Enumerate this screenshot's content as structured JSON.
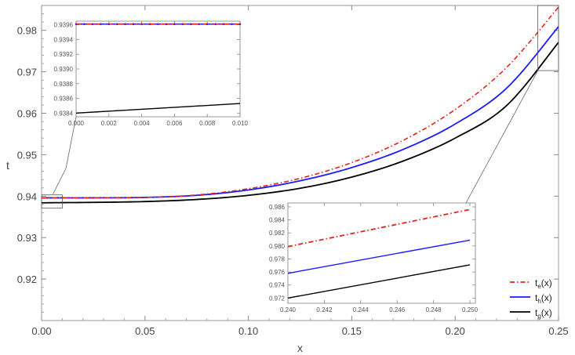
{
  "chart_data": [
    {
      "type": "line",
      "role": "main",
      "xlabel": "x",
      "ylabel": "t",
      "xlim": [
        0,
        0.25
      ],
      "ylim": [
        0.91,
        0.986
      ],
      "x_ticks": [
        "0.00",
        "0.05",
        "0.10",
        "0.15",
        "0.20",
        "0.25"
      ],
      "y_ticks": [
        "0.92",
        "0.93",
        "0.94",
        "0.95",
        "0.96",
        "0.97",
        "0.98"
      ],
      "grid": false,
      "legend_position": "bottom-right",
      "series": [
        {
          "name": "t_e(x)",
          "label_base": "t",
          "label_sub": "e",
          "label_tail": "(x)",
          "color": "#e8241a",
          "style": "dash-dot",
          "points": [
            [
              0,
              0.9396
            ],
            [
              0.025,
              0.9396
            ],
            [
              0.05,
              0.9397
            ],
            [
              0.075,
              0.9403
            ],
            [
              0.1,
              0.9418
            ],
            [
              0.125,
              0.9443
            ],
            [
              0.15,
              0.9481
            ],
            [
              0.175,
              0.9535
            ],
            [
              0.2,
              0.9609
            ],
            [
              0.225,
              0.9711
            ],
            [
              0.25,
              0.9856
            ]
          ]
        },
        {
          "name": "t_h(x)",
          "label_base": "t",
          "label_sub": "h",
          "label_tail": "(x)",
          "color": "#1a1aff",
          "style": "solid",
          "points": [
            [
              0,
              0.9396
            ],
            [
              0.025,
              0.9396
            ],
            [
              0.05,
              0.9397
            ],
            [
              0.075,
              0.9402
            ],
            [
              0.1,
              0.9415
            ],
            [
              0.125,
              0.9437
            ],
            [
              0.15,
              0.9469
            ],
            [
              0.175,
              0.9513
            ],
            [
              0.2,
              0.9574
            ],
            [
              0.225,
              0.9661
            ],
            [
              0.25,
              0.9809
            ]
          ]
        },
        {
          "name": "t_g(x)",
          "label_base": "t",
          "label_sub": "g",
          "label_tail": "(x)",
          "color": "#000000",
          "style": "solid",
          "points": [
            [
              0,
              0.9384
            ],
            [
              0.025,
              0.9385
            ],
            [
              0.05,
              0.9387
            ],
            [
              0.075,
              0.9392
            ],
            [
              0.1,
              0.9402
            ],
            [
              0.125,
              0.9419
            ],
            [
              0.15,
              0.9446
            ],
            [
              0.175,
              0.9485
            ],
            [
              0.2,
              0.954
            ],
            [
              0.225,
              0.9619
            ],
            [
              0.25,
              0.9771
            ]
          ]
        }
      ]
    },
    {
      "type": "line",
      "role": "inset",
      "xlim": [
        0,
        0.01
      ],
      "ylim": [
        0.93835,
        0.93965
      ],
      "x_ticks": [
        "0.000",
        "0.002",
        "0.004",
        "0.006",
        "0.008",
        "0.010"
      ],
      "y_ticks": [
        "0.9384",
        "0.9386",
        "0.9388",
        "0.9390",
        "0.9392",
        "0.9394",
        "0.9396"
      ],
      "series": [
        {
          "name": "t_e(x)",
          "color": "#e8241a",
          "style": "dash-dot",
          "points": [
            [
              0,
              0.93961
            ],
            [
              0.01,
              0.93961
            ]
          ]
        },
        {
          "name": "t_h(x)",
          "color": "#1a1aff",
          "style": "solid",
          "points": [
            [
              0,
              0.93961
            ],
            [
              0.01,
              0.93961
            ]
          ]
        },
        {
          "name": "t_g(x)",
          "color": "#000000",
          "style": "solid",
          "points": [
            [
              0,
              0.9384
            ],
            [
              0.01,
              0.93853
            ]
          ]
        }
      ]
    },
    {
      "type": "line",
      "role": "inset",
      "xlim": [
        0.24,
        0.2503
      ],
      "ylim": [
        0.9712,
        0.9866
      ],
      "x_ticks": [
        "0.240",
        "0.242",
        "0.244",
        "0.246",
        "0.248",
        "0.250"
      ],
      "y_ticks": [
        "0.972",
        "0.974",
        "0.976",
        "0.978",
        "0.980",
        "0.982",
        "0.984",
        "0.986"
      ],
      "series": [
        {
          "name": "t_e(x)",
          "color": "#e8241a",
          "style": "dash-dot",
          "points": [
            [
              0.24,
              0.9799
            ],
            [
              0.25,
              0.9856
            ]
          ]
        },
        {
          "name": "t_h(x)",
          "color": "#1a1aff",
          "style": "solid",
          "points": [
            [
              0.24,
              0.9758
            ],
            [
              0.25,
              0.9809
            ]
          ]
        },
        {
          "name": "t_g(x)",
          "color": "#000000",
          "style": "solid",
          "points": [
            [
              0.24,
              0.972
            ],
            [
              0.25,
              0.9771
            ]
          ]
        }
      ]
    }
  ]
}
